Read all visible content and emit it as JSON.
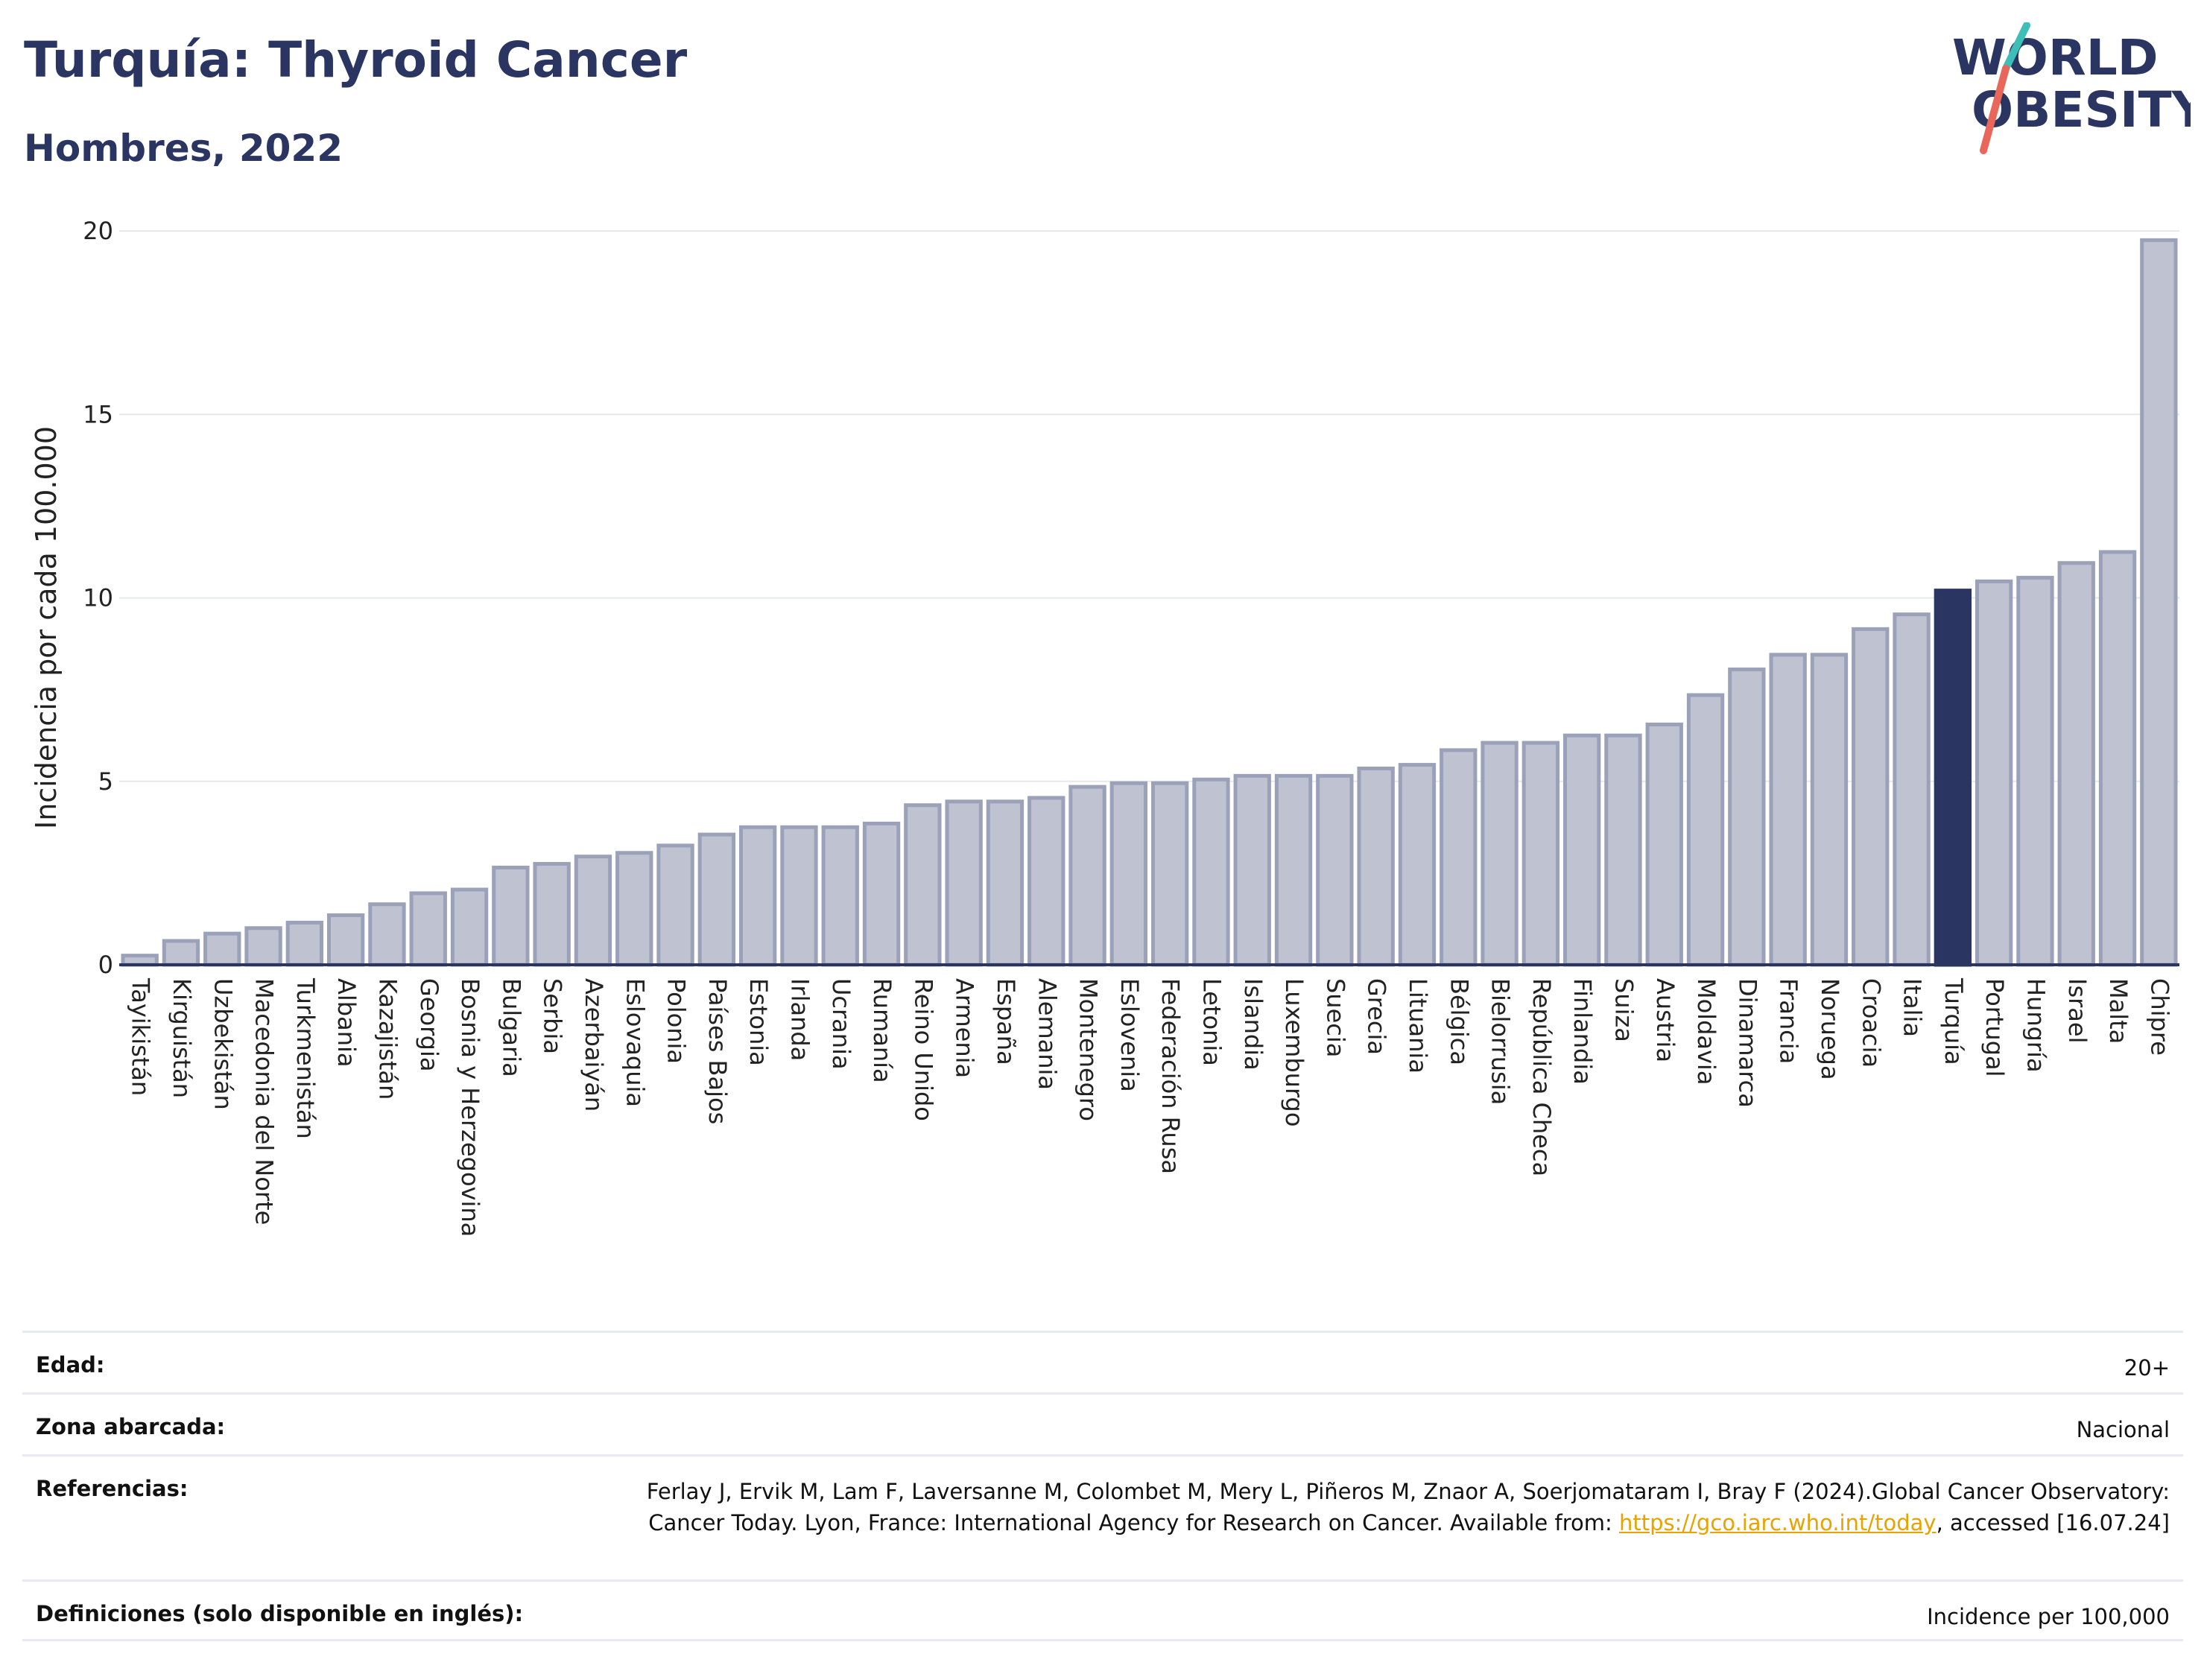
{
  "header": {
    "title": "Turquía: Thyroid Cancer",
    "subtitle": "Hombres, 2022"
  },
  "logo": {
    "line1": "WORLD",
    "line2": "OBESITY",
    "accent_colors": [
      "#3dbfb8",
      "#e8675a"
    ]
  },
  "chart_data": {
    "type": "bar",
    "ylabel": "Incidencia por cada 100.000",
    "ylim": [
      0,
      20
    ],
    "yticks": [
      0,
      5,
      10,
      15,
      20
    ],
    "grid": true,
    "highlight": "Turquía",
    "colors": {
      "bar": "#bfc3d1",
      "bar_edge": "#9aa1b8",
      "highlight": "#2b3561"
    },
    "categories": [
      "Tayikistán",
      "Kirguistán",
      "Uzbekistán",
      "Macedonia del Norte",
      "Turkmenistán",
      "Albania",
      "Kazajistán",
      "Georgia",
      "Bosnia y Herzegovina",
      "Bulgaria",
      "Serbia",
      "Azerbaiyán",
      "Eslovaquia",
      "Polonia",
      "Países Bajos",
      "Estonia",
      "Irlanda",
      "Ucrania",
      "Rumanía",
      "Reino Unido",
      "Armenia",
      "España",
      "Alemania",
      "Montenegro",
      "Eslovenia",
      "Federación Rusa",
      "Letonia",
      "Islandia",
      "Luxemburgo",
      "Suecia",
      "Grecia",
      "Lituania",
      "Bélgica",
      "Bielorrusia",
      "República Checa",
      "Finlandia",
      "Suiza",
      "Austria",
      "Moldavia",
      "Dinamarca",
      "Francia",
      "Noruega",
      "Croacia",
      "Italia",
      "Turquía",
      "Portugal",
      "Hungría",
      "Israel",
      "Malta",
      "Chipre"
    ],
    "values": [
      0.25,
      0.65,
      0.85,
      1.0,
      1.15,
      1.35,
      1.65,
      1.95,
      2.05,
      2.65,
      2.75,
      2.95,
      3.05,
      3.25,
      3.55,
      3.75,
      3.75,
      3.75,
      3.85,
      4.35,
      4.45,
      4.45,
      4.55,
      4.85,
      4.95,
      4.95,
      5.05,
      5.15,
      5.15,
      5.15,
      5.35,
      5.45,
      5.85,
      6.05,
      6.05,
      6.25,
      6.25,
      6.55,
      7.35,
      8.05,
      8.45,
      8.45,
      9.15,
      9.55,
      10.2,
      10.45,
      10.55,
      10.95,
      11.25,
      19.75
    ]
  },
  "meta": {
    "age_label": "Edad:",
    "age_value": "20+",
    "area_label": "Zona abarcada:",
    "area_value": "Nacional",
    "ref_label": "Referencias:",
    "ref_text1": "Ferlay J, Ervik M, Lam F, Laversanne M, Colombet M, Mery L, Piñeros M, Znaor A, Soerjomataram I, Bray F (2024).Global Cancer Observatory: Cancer Today. Lyon, France: International Agency for Research on Cancer. Available from: ",
    "ref_link": "https://gco.iarc.who.int/today",
    "ref_text2": ", accessed [16.07.24]",
    "def_label": "Definiciones (solo disponible en inglés):",
    "def_value": "Incidence per 100,000"
  }
}
